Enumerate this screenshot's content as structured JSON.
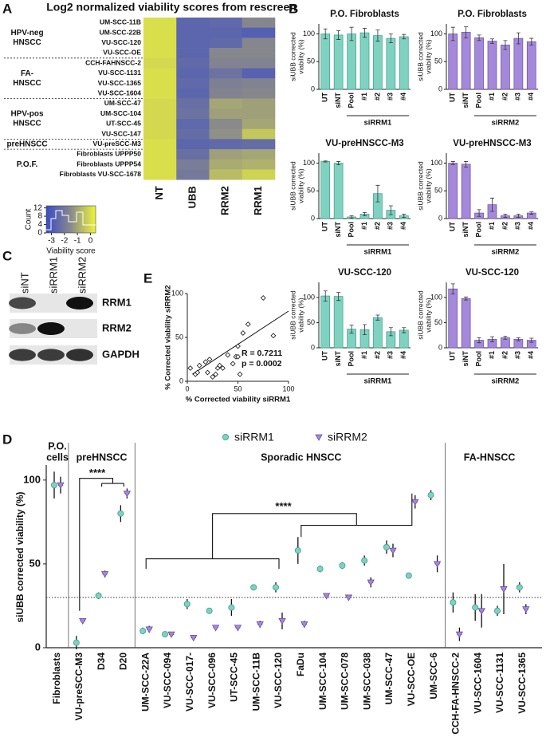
{
  "panel_labels": [
    "A",
    "B",
    "C",
    "D",
    "E"
  ],
  "blot": {
    "lanes": [
      "siNT",
      "siRRM1",
      "siRRM2"
    ],
    "proteins": [
      "RRM1",
      "RRM2",
      "GAPDH"
    ]
  },
  "chart_data": [
    {
      "type": "heatmap",
      "title": "Log2 normalized viability scores from rescreen",
      "rows": [
        "UM-SCC-11B",
        "UM-SCC-22B",
        "VU-SCC-120",
        "VU-SCC-OE",
        "CCH-FAHNSCC-2",
        "VU-SCC-1131",
        "VU-SCC-1365",
        "VU-SCC-1604",
        "UM-SCC-47",
        "UM-SCC-104",
        "UT-SCC-45",
        "VU-SCC-147",
        "VU-preSCC-M3",
        "Fibroblasts UPPP50",
        "Fibroblasts UPPP54",
        "Fibroblasts VU-SCC-1678"
      ],
      "columns": [
        "NT",
        "UBB",
        "RRM2",
        "RRM1"
      ],
      "values": [
        [
          0,
          -2.6,
          -2.5,
          -1.6
        ],
        [
          0,
          -2.6,
          -2.6,
          -2.8
        ],
        [
          0,
          -2.6,
          -2.5,
          -1.6
        ],
        [
          0,
          -2.6,
          -1.6,
          -1.6
        ],
        [
          -0.1,
          -2.5,
          -1.7,
          -1.7
        ],
        [
          0,
          -2.6,
          -2.2,
          -2.7
        ],
        [
          0,
          -2.5,
          -1.8,
          -1.7
        ],
        [
          0,
          -2.6,
          -1.7,
          -1.6
        ],
        [
          -0.1,
          -2.3,
          -1.0,
          -1.1
        ],
        [
          -0.1,
          -2.2,
          -1.1,
          -1.1
        ],
        [
          -0.1,
          -2.5,
          -1.5,
          -1.0
        ],
        [
          -0.1,
          -2.4,
          -1.4,
          -0.4
        ],
        [
          0,
          -2.6,
          -2.5,
          -2.4
        ],
        [
          0,
          -2.3,
          -1.1,
          -1.0
        ],
        [
          0,
          -1.9,
          -0.9,
          -0.8
        ],
        [
          0,
          -2.0,
          -0.6,
          -0.2
        ]
      ],
      "groups": [
        [
          "HPV-neg",
          "HNSCC"
        ],
        [
          "FA-",
          "HNSCC"
        ],
        [
          "HPV-pos",
          "HNSCC"
        ],
        [
          "preHNSCC"
        ],
        [
          "P.O.F."
        ]
      ],
      "colors": [
        "#3a4cc6",
        "#8a8a8a",
        "#eef43a"
      ],
      "clim": [
        -3.4,
        0.4
      ],
      "colorbar": {
        "label": "Viability score",
        "ticks": [
          -3,
          -2,
          -1,
          0
        ],
        "count_label": "Count",
        "count_ticks": [
          0,
          4,
          8,
          12
        ],
        "count_lim": [
          0,
          13
        ]
      }
    },
    {
      "type": "bar",
      "title": "P.O. Fibroblasts",
      "ylabel": [
        "siUBB corrected",
        "viability (%)"
      ],
      "categories": [
        "UT",
        "siNT",
        "Pool",
        "#1",
        "#2",
        "#3",
        "#4"
      ],
      "values": [
        100,
        98,
        100,
        102,
        97,
        92,
        95
      ],
      "errors": [
        9,
        8,
        12,
        8,
        10,
        8,
        4
      ],
      "group_label": "siRRM1",
      "color": "#7fd1c0",
      "edge": "#3a9f8a",
      "ylim": [
        0,
        118
      ],
      "yticks": [
        0,
        50,
        100
      ]
    },
    {
      "type": "bar",
      "title": "P.O. Fibroblasts",
      "ylabel": [
        "siUBB corrected",
        "viability (%)"
      ],
      "categories": [
        "UT",
        "siNT",
        "Pool",
        "#1",
        "#2",
        "#3",
        "#4"
      ],
      "values": [
        100,
        103,
        93,
        87,
        80,
        92,
        86
      ],
      "errors": [
        12,
        10,
        5,
        4,
        8,
        10,
        6
      ],
      "group_label": "siRRM2",
      "color": "#a489da",
      "edge": "#6a4aa8",
      "ylim": [
        0,
        118
      ],
      "yticks": [
        0,
        50,
        100
      ]
    },
    {
      "type": "bar",
      "title": "VU-preHNSCC-M3",
      "ylabel": [
        "siUBB corrected",
        "viability (%)"
      ],
      "categories": [
        "UT",
        "siNT",
        "Pool",
        "#1",
        "#2",
        "#3",
        "#4"
      ],
      "values": [
        103,
        100,
        3,
        8,
        45,
        15,
        5
      ],
      "errors": [
        1,
        3,
        2,
        3,
        15,
        8,
        3
      ],
      "group_label": "siRRM1",
      "color": "#7fd1c0",
      "edge": "#3a9f8a",
      "ylim": [
        0,
        118
      ],
      "yticks": [
        0,
        50,
        100
      ]
    },
    {
      "type": "bar",
      "title": "VU-preHNSCC-M3",
      "ylabel": [
        "siUBB corrected",
        "viability (%)"
      ],
      "categories": [
        "UT",
        "siNT",
        "Pool",
        "#1",
        "#2",
        "#3",
        "#4"
      ],
      "values": [
        100,
        98,
        10,
        25,
        5,
        5,
        10
      ],
      "errors": [
        3,
        5,
        6,
        12,
        3,
        3,
        2
      ],
      "group_label": "siRRM2",
      "color": "#a489da",
      "edge": "#6a4aa8",
      "ylim": [
        0,
        118
      ],
      "yticks": [
        0,
        50,
        100
      ]
    },
    {
      "type": "bar",
      "title": "VU-SCC-120",
      "ylabel": [
        "siUBB corrected",
        "viability (%)"
      ],
      "categories": [
        "UT",
        "siNT",
        "Pool",
        "#1",
        "#2",
        "#3",
        "#4"
      ],
      "values": [
        103,
        102,
        37,
        36,
        60,
        32,
        35
      ],
      "errors": [
        10,
        8,
        8,
        10,
        5,
        8,
        5
      ],
      "group_label": "siRRM1",
      "color": "#7fd1c0",
      "edge": "#3a9f8a",
      "ylim": [
        0,
        130
      ],
      "yticks": [
        0,
        50,
        100
      ]
    },
    {
      "type": "bar",
      "title": "VU-SCC-120",
      "ylabel": [
        "siUBB corrected",
        "viability (%)"
      ],
      "categories": [
        "UT",
        "siNT",
        "Pool",
        "#1",
        "#2",
        "#3",
        "#4"
      ],
      "values": [
        117,
        98,
        15,
        17,
        20,
        17,
        15
      ],
      "errors": [
        10,
        3,
        5,
        5,
        3,
        3,
        4
      ],
      "group_label": "siRRM2",
      "color": "#a489da",
      "edge": "#6a4aa8",
      "ylim": [
        0,
        130
      ],
      "yticks": [
        0,
        50,
        100
      ]
    },
    {
      "type": "scatter",
      "xlabel": "% Corrected viability siRRM1",
      "ylabel": "% Corrected viability siRRM2",
      "x": [
        3,
        8,
        10,
        12,
        18,
        20,
        22,
        25,
        28,
        30,
        32,
        35,
        40,
        45,
        48,
        50,
        50,
        52,
        55,
        60,
        75,
        85
      ],
      "y": [
        15,
        8,
        10,
        18,
        22,
        10,
        25,
        5,
        8,
        15,
        18,
        15,
        30,
        20,
        28,
        28,
        40,
        8,
        55,
        65,
        95,
        52
      ],
      "fit_line": {
        "x": [
          5,
          100
        ],
        "y": [
          8,
          80
        ]
      },
      "annotations": [
        "R = 0.7211",
        "p = 0.0002"
      ],
      "xlim": [
        0,
        100
      ],
      "ylim": [
        0,
        100
      ],
      "xticks": [
        0,
        50,
        100
      ],
      "yticks": [
        0,
        50,
        100
      ]
    },
    {
      "type": "dot",
      "ylabel": "siUBB corrected viability (%)",
      "categories": [
        "Fibroblasts",
        "VU-preSCC-M3",
        "D34",
        "D20",
        "UM-SCC-22A",
        "VU-SCC-094",
        "VU-SCC-017-",
        "VU-SCC-096",
        "UT-SCC-45",
        "UM-SCC-11B",
        "VU-SCC-120",
        "FaDu",
        "UM-SCC-104",
        "UM-SCC-078",
        "UM-SCC-038",
        "UM-SCC-47",
        "VU-SCC-OE",
        "UM-SCC-6",
        "CCH-FA-HNSCC-2",
        "VU-SCC-1604",
        "VU-SCC-1131",
        "VU-SCC-1365"
      ],
      "groups": [
        [
          "P.O.",
          "cells"
        ],
        [
          "preHNSCC"
        ],
        [
          "Sporadic HNSCC"
        ],
        [
          "FA-HNSCC"
        ]
      ],
      "series": [
        {
          "name": "siRRM1",
          "color": "#7fd1c0",
          "edge": "#3a9f8a",
          "marker": "circle",
          "values": [
            97,
            3,
            31,
            80,
            10,
            8,
            26,
            22,
            24,
            36,
            36,
            58,
            47,
            49,
            52,
            60,
            43,
            91,
            27,
            24,
            22,
            36
          ],
          "errors": [
            8,
            4,
            2,
            5,
            2,
            1,
            3,
            1,
            5,
            1,
            3,
            8,
            2,
            2,
            3,
            4,
            1,
            3,
            6,
            8,
            3,
            3
          ]
        },
        {
          "name": "siRRM2",
          "color": "#a489da",
          "edge": "#6a4aa8",
          "marker": "triangle",
          "values": [
            97,
            16,
            44,
            92,
            11,
            8,
            6,
            12,
            12,
            14,
            16,
            14,
            31,
            30,
            39,
            58,
            87,
            50,
            8,
            22,
            35,
            23
          ],
          "errors": [
            5,
            1,
            2,
            3,
            2,
            1,
            1,
            0,
            1,
            2,
            5,
            2,
            1,
            1,
            3,
            4,
            4,
            5,
            4,
            10,
            15,
            3
          ]
        }
      ],
      "threshold": 30,
      "annotations": [
        "****",
        "****"
      ],
      "ylim": [
        0,
        108
      ],
      "yticks": [
        0,
        50,
        100
      ]
    }
  ]
}
